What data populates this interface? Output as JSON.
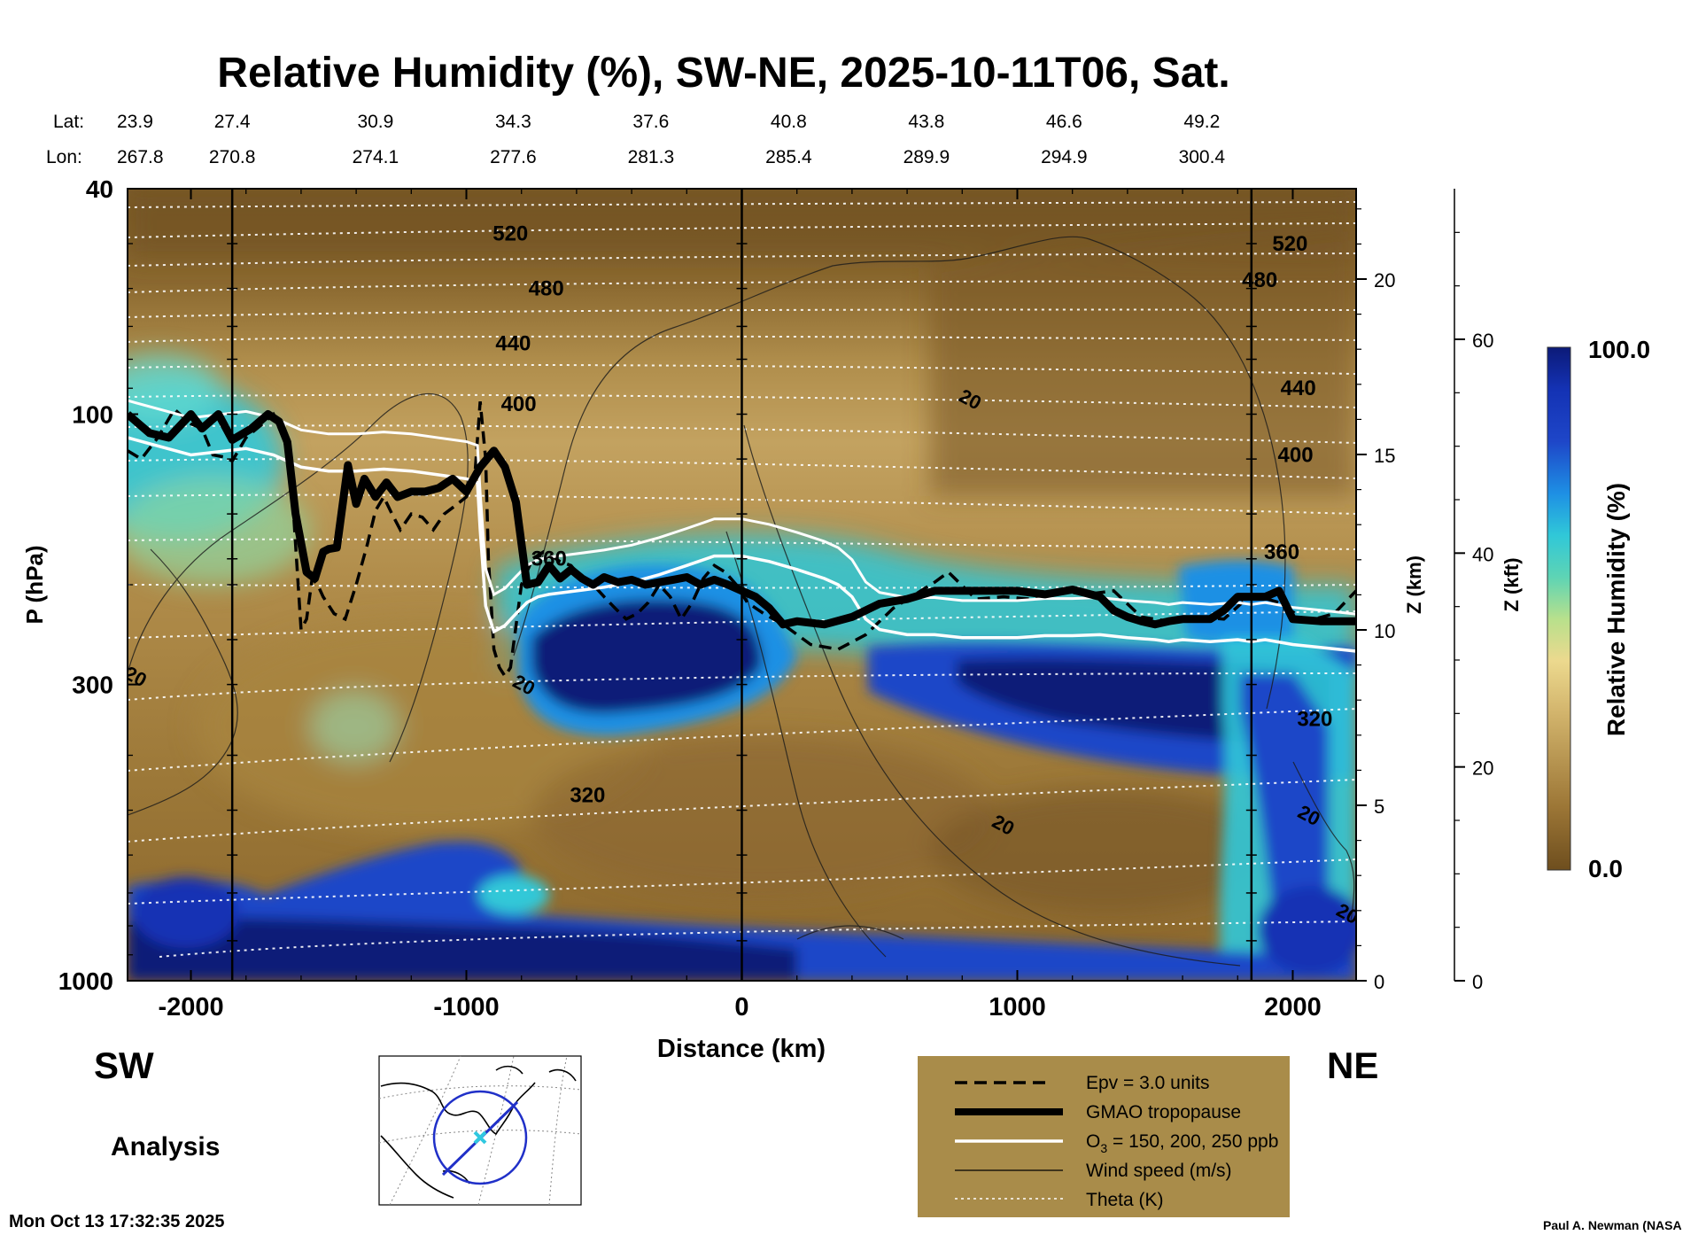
{
  "chart_data": {
    "type": "heatmap",
    "title": "Relative Humidity (%), SW-NE, 2025-10-11T06, Sat.",
    "xlabel": "Distance (km)",
    "ylabel": "P (hPa)",
    "right_axis_1_label": "Z (km)",
    "right_axis_2_label": "Z (kft)",
    "colorbar_label": "Relative Humidity (%)",
    "xlim": [
      -2230,
      2230
    ],
    "ylim": [
      1000,
      40
    ],
    "y_scale": "log",
    "x_ticks": [
      "-2000",
      "-1000",
      "0",
      "1000",
      "2000"
    ],
    "x_tick_values": [
      -2000,
      -1000,
      0,
      1000,
      2000
    ],
    "y_ticks": [
      "40",
      "100",
      "300",
      "1000"
    ],
    "y_tick_values": [
      40,
      100,
      300,
      1000
    ],
    "z_km_ticks": [
      "0",
      "5",
      "10",
      "15",
      "20"
    ],
    "z_km_values": [
      0,
      5,
      10,
      15,
      20
    ],
    "z_kft_ticks": [
      "0",
      "20",
      "40",
      "60"
    ],
    "z_kft_values": [
      0,
      20,
      40,
      60
    ],
    "colorbar_range": [
      0.0,
      100.0
    ],
    "colorbar_max_label": "100.0",
    "colorbar_min_label": "0.0",
    "colors": {
      "dry_dark": "#6e4e1e",
      "dry": "#9c7636",
      "mid": "#d2b46c",
      "moist": "#30c8d8",
      "wet": "#1432b4",
      "very_wet": "#0c1a78",
      "legend_bg": "#a98c4a"
    },
    "lat_label": "Lat:",
    "lon_label": "Lon:",
    "lat_values": [
      "23.9",
      "27.4",
      "30.9",
      "34.3",
      "37.6",
      "40.8",
      "43.8",
      "46.6",
      "49.2"
    ],
    "lon_values": [
      "267.8",
      "270.8",
      "274.1",
      "277.6",
      "281.3",
      "285.4",
      "289.9",
      "294.9",
      "300.4"
    ],
    "latlon_x_values": [
      -2230,
      -1850,
      -1330,
      -830,
      -330,
      170,
      670,
      1170,
      1670
    ],
    "vertical_lines_x": [
      -1850,
      0,
      1850
    ],
    "theta_labels": [
      {
        "text": "520",
        "x": -840,
        "p": 48
      },
      {
        "text": "480",
        "x": -710,
        "p": 60
      },
      {
        "text": "440",
        "x": -830,
        "p": 75
      },
      {
        "text": "400",
        "x": -810,
        "p": 96
      },
      {
        "text": "360",
        "x": -700,
        "p": 180
      },
      {
        "text": "320",
        "x": -560,
        "p": 470
      },
      {
        "text": "520",
        "x": 1990,
        "p": 50
      },
      {
        "text": "480",
        "x": 1880,
        "p": 58
      },
      {
        "text": "440",
        "x": 2020,
        "p": 90
      },
      {
        "text": "400",
        "x": 2010,
        "p": 118
      },
      {
        "text": "360",
        "x": 1960,
        "p": 175
      },
      {
        "text": "320",
        "x": 2080,
        "p": 345
      }
    ],
    "wind_labels": [
      {
        "text": "20",
        "x": 830,
        "p": 94
      },
      {
        "text": "20",
        "x": -2200,
        "p": 290
      },
      {
        "text": "20",
        "x": -790,
        "p": 300
      },
      {
        "text": "20",
        "x": 950,
        "p": 530
      },
      {
        "text": "20",
        "x": 2060,
        "p": 510
      },
      {
        "text": "20",
        "x": 2200,
        "p": 760
      }
    ],
    "series": [
      {
        "name": "GMAO tropopause",
        "style": "thick-black",
        "x": [
          -2230,
          -2150,
          -2080,
          -2000,
          -1960,
          -1900,
          -1850,
          -1780,
          -1720,
          -1680,
          -1650,
          -1620,
          -1580,
          -1550,
          -1520,
          -1500,
          -1470,
          -1430,
          -1400,
          -1370,
          -1330,
          -1290,
          -1250,
          -1200,
          -1150,
          -1100,
          -1050,
          -1000,
          -950,
          -900,
          -860,
          -820,
          -780,
          -740,
          -700,
          -660,
          -620,
          -580,
          -540,
          -500,
          -450,
          -400,
          -350,
          -300,
          -250,
          -200,
          -150,
          -100,
          -50,
          0,
          50,
          100,
          150,
          200,
          300,
          400,
          500,
          600,
          700,
          800,
          900,
          1000,
          1100,
          1200,
          1300,
          1350,
          1400,
          1450,
          1500,
          1550,
          1600,
          1700,
          1750,
          1800,
          1900,
          1950,
          2000,
          2100,
          2230
        ],
        "y": [
          100,
          108,
          110,
          100,
          106,
          100,
          111,
          106,
          100,
          103,
          112,
          150,
          190,
          195,
          175,
          173,
          172,
          123,
          144,
          130,
          140,
          132,
          140,
          137,
          137,
          135,
          130,
          137,
          124,
          116,
          124,
          143,
          200,
          198,
          185,
          195,
          188,
          195,
          200,
          194,
          198,
          196,
          200,
          198,
          196,
          194,
          200,
          196,
          200,
          205,
          210,
          220,
          235,
          232,
          235,
          228,
          216,
          212,
          205,
          205,
          205,
          205,
          208,
          204,
          210,
          222,
          228,
          232,
          235,
          232,
          230,
          230,
          222,
          210,
          210,
          205,
          230,
          232,
          232
        ]
      },
      {
        "name": "Epv = 3.0 units",
        "style": "dashed-black",
        "x": [
          -2230,
          -2180,
          -2120,
          -2060,
          -2000,
          -1960,
          -1920,
          -1880,
          -1850,
          -1800,
          -1740,
          -1700,
          -1680,
          -1660,
          -1640,
          -1620,
          -1600,
          -1580,
          -1560,
          -1540,
          -1520,
          -1480,
          -1440,
          -1400,
          -1360,
          -1330,
          -1300,
          -1270,
          -1240,
          -1200,
          -1160,
          -1120,
          -1080,
          -1040,
          -1000,
          -970,
          -950,
          -930,
          -920,
          -900,
          -880,
          -860,
          -840,
          -800,
          -760,
          -720,
          -690,
          -660,
          -620,
          -580,
          -540,
          -500,
          -460,
          -420,
          -380,
          -340,
          -300,
          -260,
          -220,
          -180,
          -140,
          -100,
          -60,
          -20,
          20,
          80,
          150,
          250,
          350,
          450,
          550,
          650,
          700,
          750,
          850,
          950,
          1050,
          1150,
          1250,
          1350,
          1450,
          1550,
          1650,
          1750,
          1850,
          1950,
          2050,
          2150,
          2230
        ],
        "y": [
          116,
          120,
          110,
          98,
          104,
          106,
          118,
          119,
          121,
          110,
          104,
          100,
          104,
          112,
          120,
          170,
          240,
          230,
          195,
          200,
          210,
          225,
          230,
          200,
          170,
          148,
          140,
          150,
          160,
          150,
          152,
          160,
          150,
          145,
          140,
          130,
          95,
          120,
          180,
          260,
          280,
          290,
          280,
          200,
          180,
          175,
          178,
          182,
          185,
          195,
          200,
          210,
          220,
          230,
          225,
          215,
          200,
          210,
          230,
          215,
          195,
          185,
          190,
          200,
          215,
          225,
          235,
          255,
          260,
          245,
          220,
          205,
          198,
          190,
          212,
          210,
          212,
          205,
          208,
          205,
          228,
          232,
          228,
          230,
          208,
          215,
          232,
          225,
          205
        ]
      },
      {
        "name": "O3 = 150, 200, 250 ppb",
        "style": "white",
        "x": [
          -2230,
          -2000,
          -1800,
          -1700,
          -1600,
          -1500,
          -1400,
          -1300,
          -1200,
          -1100,
          -1000,
          -960,
          -950,
          -930,
          -900,
          -860,
          -820,
          -780,
          -740,
          -700,
          -600,
          -500,
          -400,
          -300,
          -200,
          -100,
          0,
          100,
          200,
          300,
          350,
          400,
          450,
          500,
          600,
          700,
          800,
          900,
          1000,
          1100,
          1200,
          1300,
          1400,
          1500,
          1550,
          1600,
          1700,
          1800,
          1850,
          1900,
          2000,
          2100,
          2230
        ],
        "y": [
          110,
          118,
          115,
          118,
          124,
          126,
          126,
          125,
          126,
          128,
          130,
          132,
          160,
          218,
          242,
          236,
          225,
          215,
          210,
          208,
          205,
          202,
          198,
          192,
          185,
          178,
          178,
          182,
          188,
          195,
          200,
          210,
          230,
          240,
          245,
          245,
          248,
          248,
          248,
          246,
          246,
          245,
          248,
          250,
          252,
          250,
          252,
          250,
          252,
          250,
          255,
          258,
          262
        ]
      }
    ],
    "legend": [
      {
        "style": "dashed-black",
        "label": "Epv = 3.0 units"
      },
      {
        "style": "thick-black",
        "label": "GMAO tropopause"
      },
      {
        "style": "white",
        "label": "O",
        "sub": "3",
        "suffix": " = 150, 200, 250 ppb"
      },
      {
        "style": "thin-black",
        "label": "Wind speed (m/s)"
      },
      {
        "style": "dotted-white",
        "label": "Theta (K)"
      }
    ],
    "direction_left": "SW",
    "direction_right": "NE",
    "mode_label": "Analysis",
    "timestamp": "Mon Oct 13 17:32:35 2025",
    "credit": "Paul A. Newman (NASA"
  }
}
